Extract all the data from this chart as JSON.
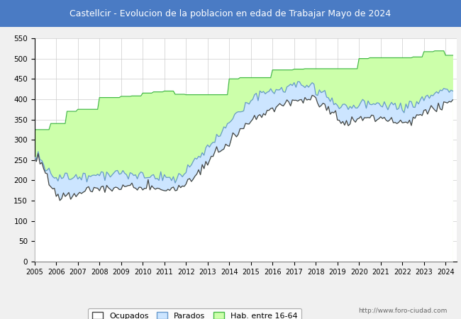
{
  "title": "Castellcir - Evolucion de la poblacion en edad de Trabajar Mayo de 2024",
  "title_bg": "#4a7bc4",
  "title_color": "white",
  "ylim": [
    0,
    550
  ],
  "yticks": [
    0,
    50,
    100,
    150,
    200,
    250,
    300,
    350,
    400,
    450,
    500,
    550
  ],
  "legend_labels": [
    "Ocupados",
    "Parados",
    "Hab. entre 16-64"
  ],
  "url_text": "http://www.foro-ciudad.com",
  "background_color": "#f0f0f0",
  "plot_bg": "#ffffff",
  "grid_color": "#cccccc",
  "hab_color_fill": "#ccffaa",
  "hab_color_line": "#44bb44",
  "parados_color_fill": "#cce5ff",
  "parados_color_line": "#6699cc",
  "ocupados_color_fill": "#ffffff",
  "ocupados_color_line": "#444444"
}
